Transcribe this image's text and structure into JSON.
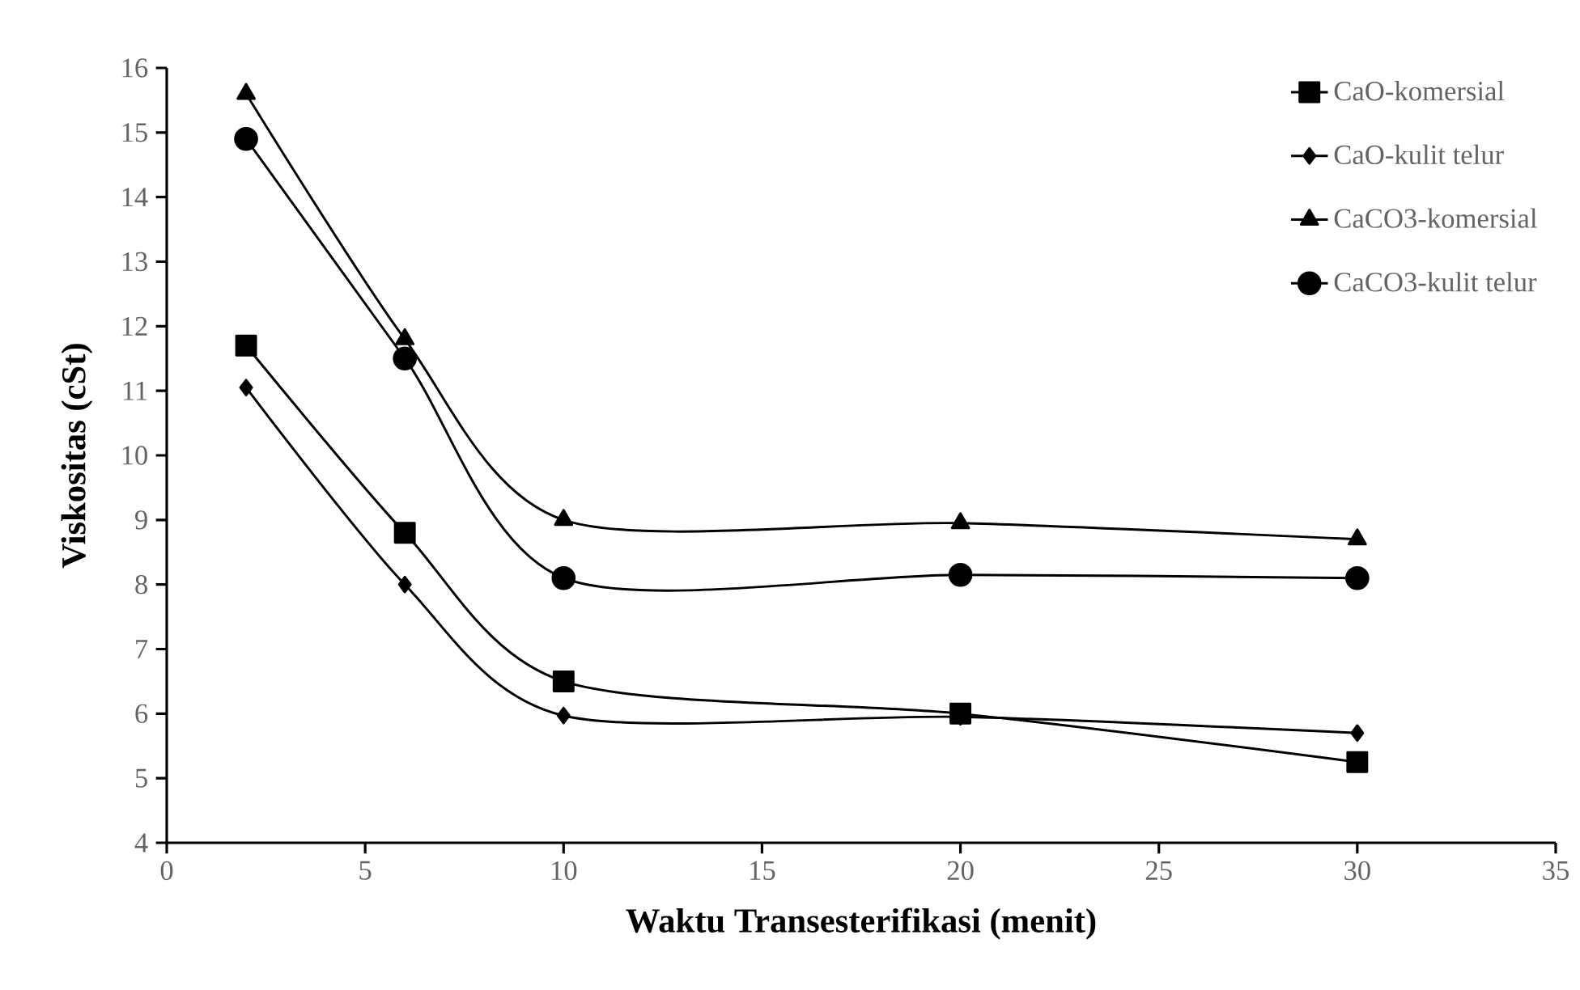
{
  "chart_data": {
    "type": "line",
    "xlabel": "Waktu Transesterifikasi (menit)",
    "ylabel": "Viskositas (cSt)",
    "x": [
      2,
      6,
      10,
      20,
      30
    ],
    "series": [
      {
        "name": "CaO-komersial",
        "color": "#000000",
        "marker": "square",
        "values": [
          11.7,
          8.8,
          6.5,
          6.0,
          5.25
        ]
      },
      {
        "name": "CaO-kulit telur",
        "color": "#000000",
        "marker": "diamond",
        "values": [
          11.05,
          8.0,
          5.97,
          5.95,
          5.7
        ]
      },
      {
        "name": "CaCO3-komersial",
        "color": "#000000",
        "marker": "triangle",
        "values": [
          15.6,
          11.8,
          9.0,
          8.95,
          8.7
        ]
      },
      {
        "name": "CaCO3-kulit telur",
        "color": "#000000",
        "marker": "circle",
        "values": [
          14.9,
          11.5,
          8.1,
          8.15,
          8.1
        ]
      }
    ],
    "xlim": [
      0,
      35
    ],
    "xticks": [
      0,
      5,
      10,
      15,
      20,
      25,
      30,
      35
    ],
    "ylim": [
      4,
      16
    ],
    "yticks": [
      4,
      5,
      6,
      7,
      8,
      9,
      10,
      11,
      12,
      13,
      14,
      15,
      16
    ],
    "grid": false,
    "legend": "top right",
    "line_style": "solid"
  }
}
